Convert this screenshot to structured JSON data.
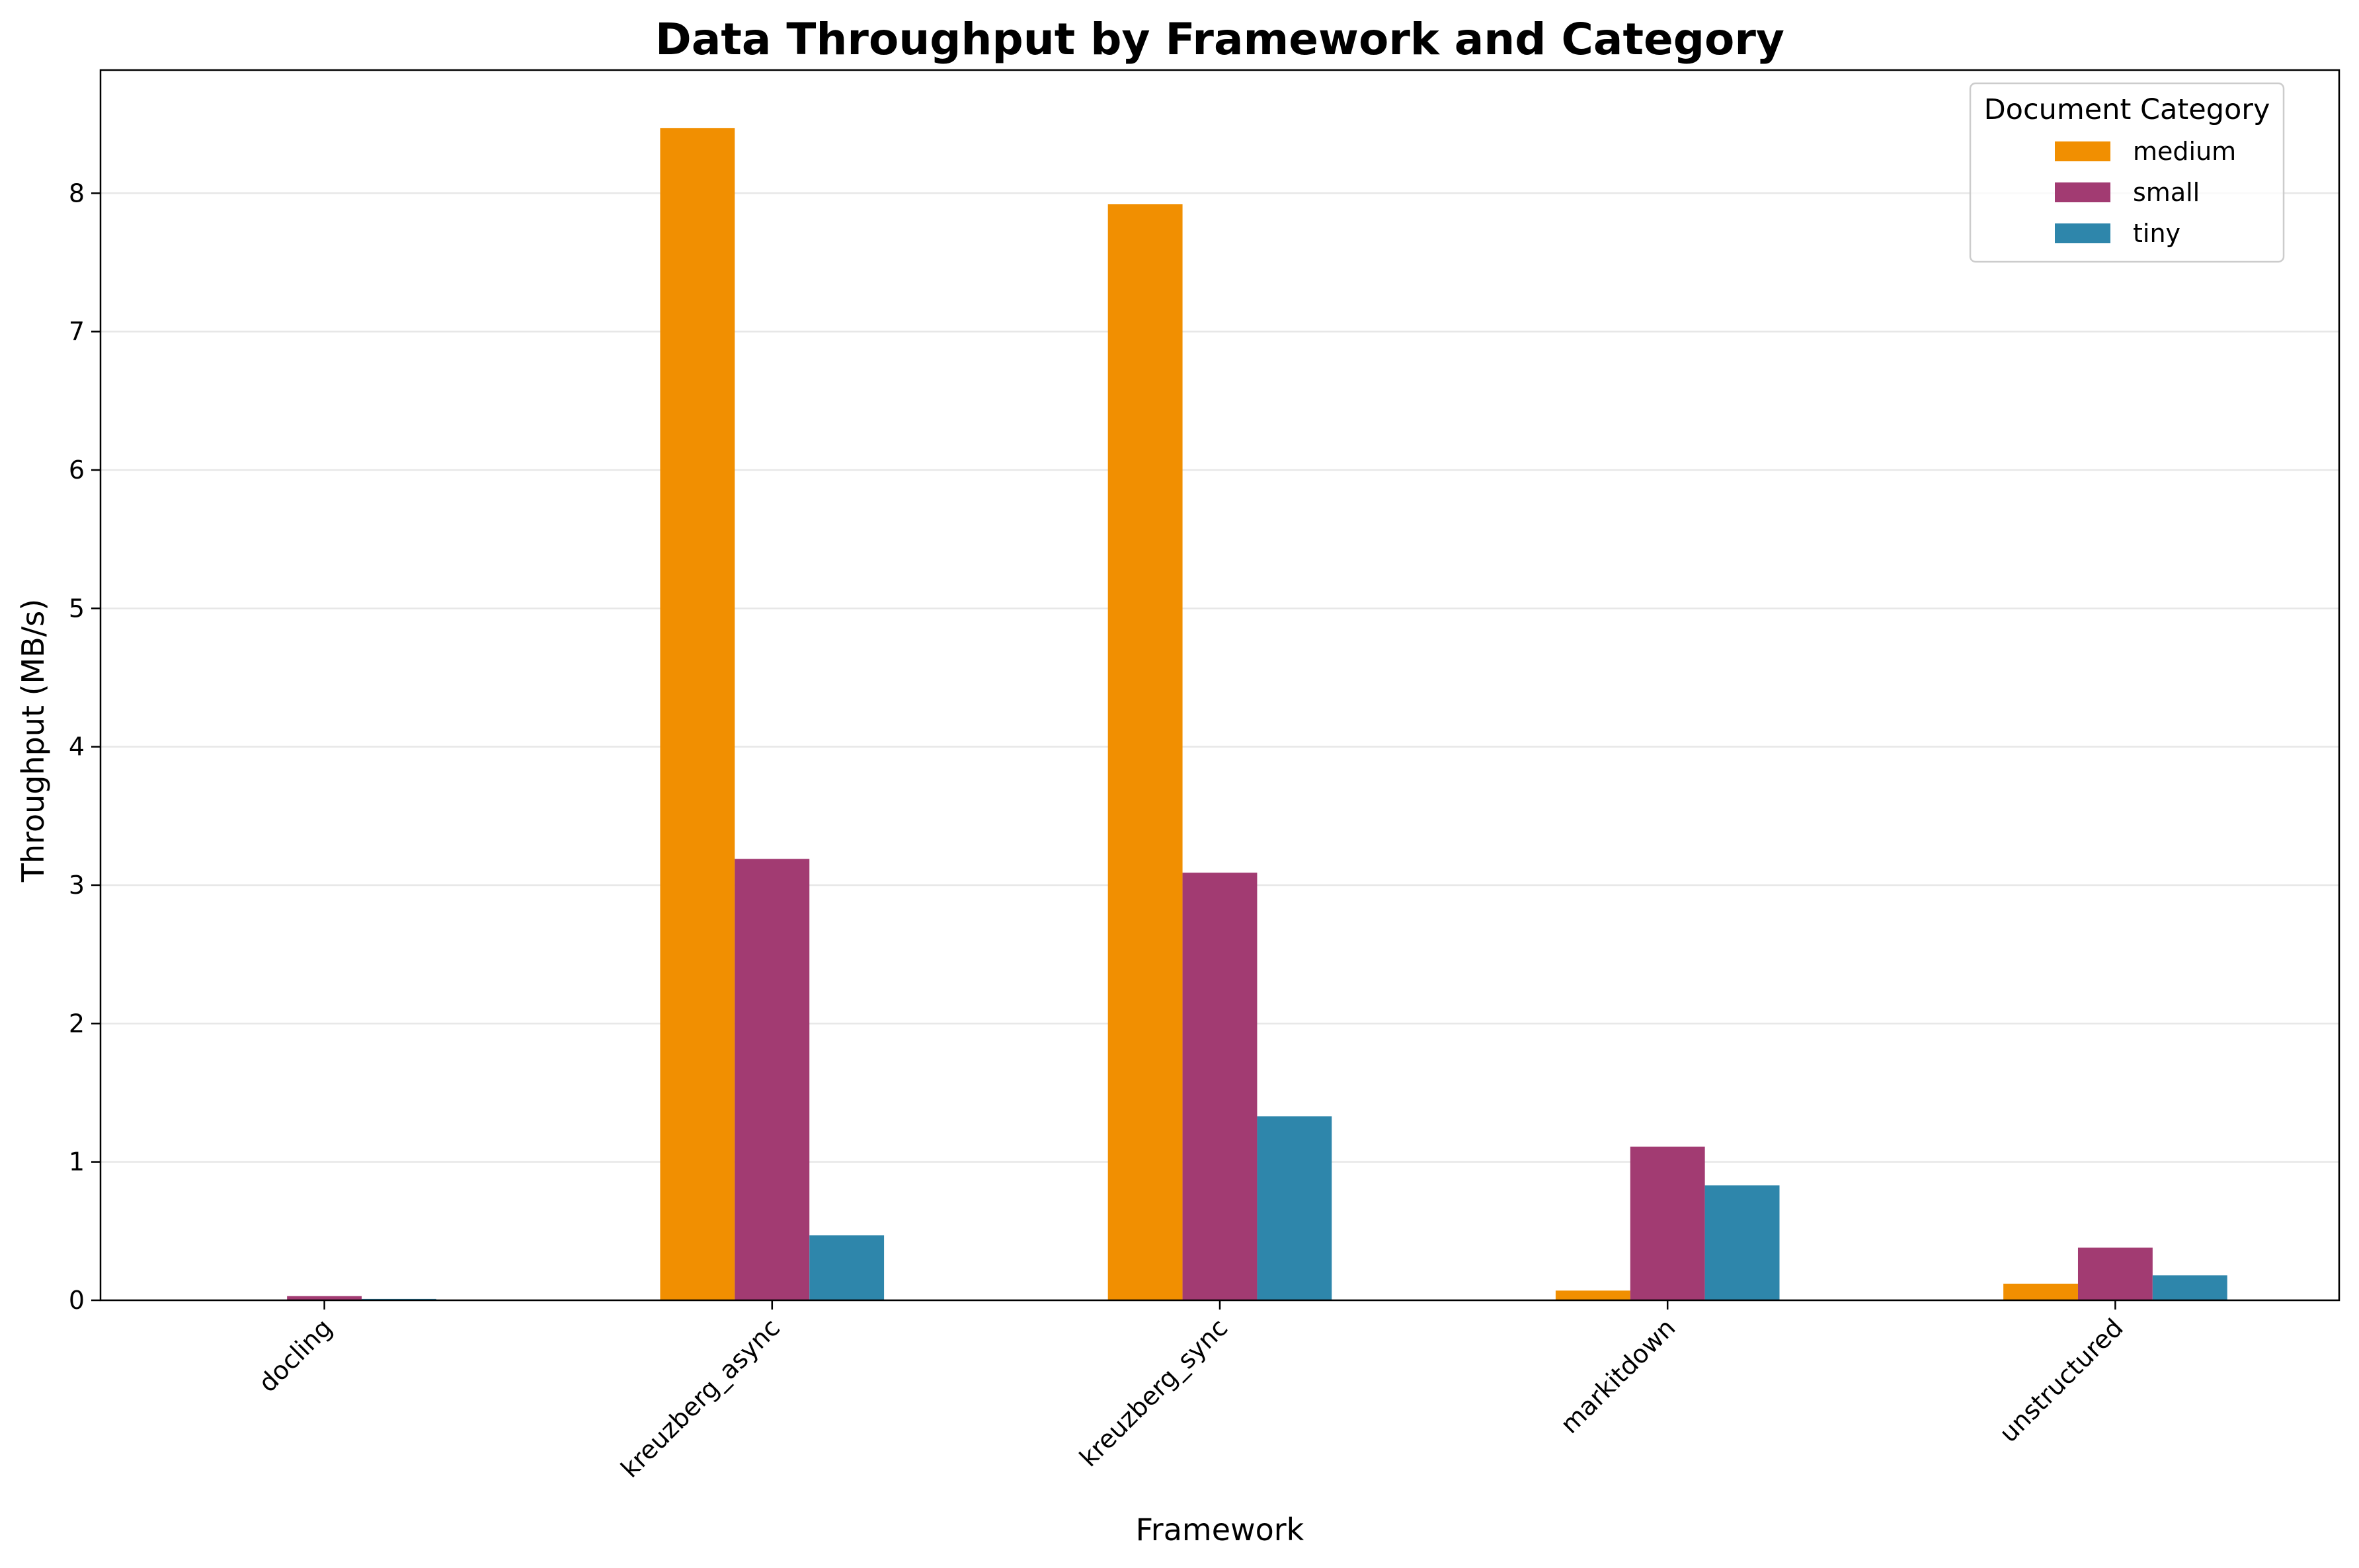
{
  "chart_data": {
    "type": "bar",
    "title": "Data Throughput by Framework and Category",
    "xlabel": "Framework",
    "ylabel": "Throughput (MB/s)",
    "categories": [
      "docling",
      "kreuzberg_async",
      "kreuzberg_sync",
      "markitdown",
      "unstructured"
    ],
    "series": [
      {
        "name": "medium",
        "color": "#f18f01",
        "values": [
          0.0,
          8.47,
          7.92,
          0.07,
          0.12
        ]
      },
      {
        "name": "small",
        "color": "#a23b72",
        "values": [
          0.03,
          3.19,
          3.09,
          1.11,
          0.38
        ]
      },
      {
        "name": "tiny",
        "color": "#2e86ab",
        "values": [
          0.01,
          0.47,
          1.33,
          0.83,
          0.18
        ]
      }
    ],
    "ylim": [
      0,
      8.89
    ],
    "yticks": [
      0,
      1,
      2,
      3,
      4,
      5,
      6,
      7,
      8
    ],
    "grid": "y-axis",
    "legend": {
      "title": "Document Category",
      "placement": "top-right"
    }
  }
}
